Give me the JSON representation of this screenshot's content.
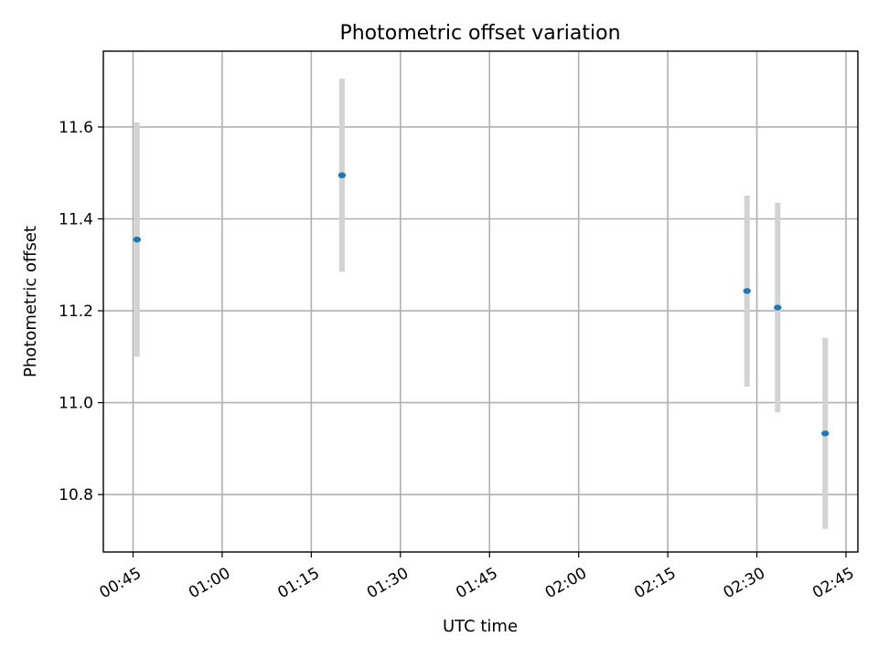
{
  "chart_data": {
    "type": "scatter",
    "title": "Photometric offset variation",
    "xlabel": "UTC time",
    "ylabel": "Photometric offset",
    "x_axis_type": "time",
    "xlim": [
      "00:40",
      "02:47"
    ],
    "ylim": [
      10.675,
      11.765
    ],
    "x_ticks": [
      "00:45",
      "01:00",
      "01:15",
      "01:30",
      "01:45",
      "02:00",
      "02:15",
      "02:30",
      "02:45"
    ],
    "y_ticks": [
      "10.8",
      "11.0",
      "11.2",
      "11.4",
      "11.6"
    ],
    "grid": true,
    "marker_color": "#1f77b4",
    "errorbar_color": "#d3d3d3",
    "points": [
      {
        "x": "00:45:40",
        "y": 11.355,
        "err": 0.255
      },
      {
        "x": "01:20:10",
        "y": 11.495,
        "err": 0.21
      },
      {
        "x": "02:28:20",
        "y": 11.243,
        "err": 0.208
      },
      {
        "x": "02:33:30",
        "y": 11.207,
        "err": 0.228
      },
      {
        "x": "02:41:30",
        "y": 10.933,
        "err": 0.208
      }
    ]
  }
}
